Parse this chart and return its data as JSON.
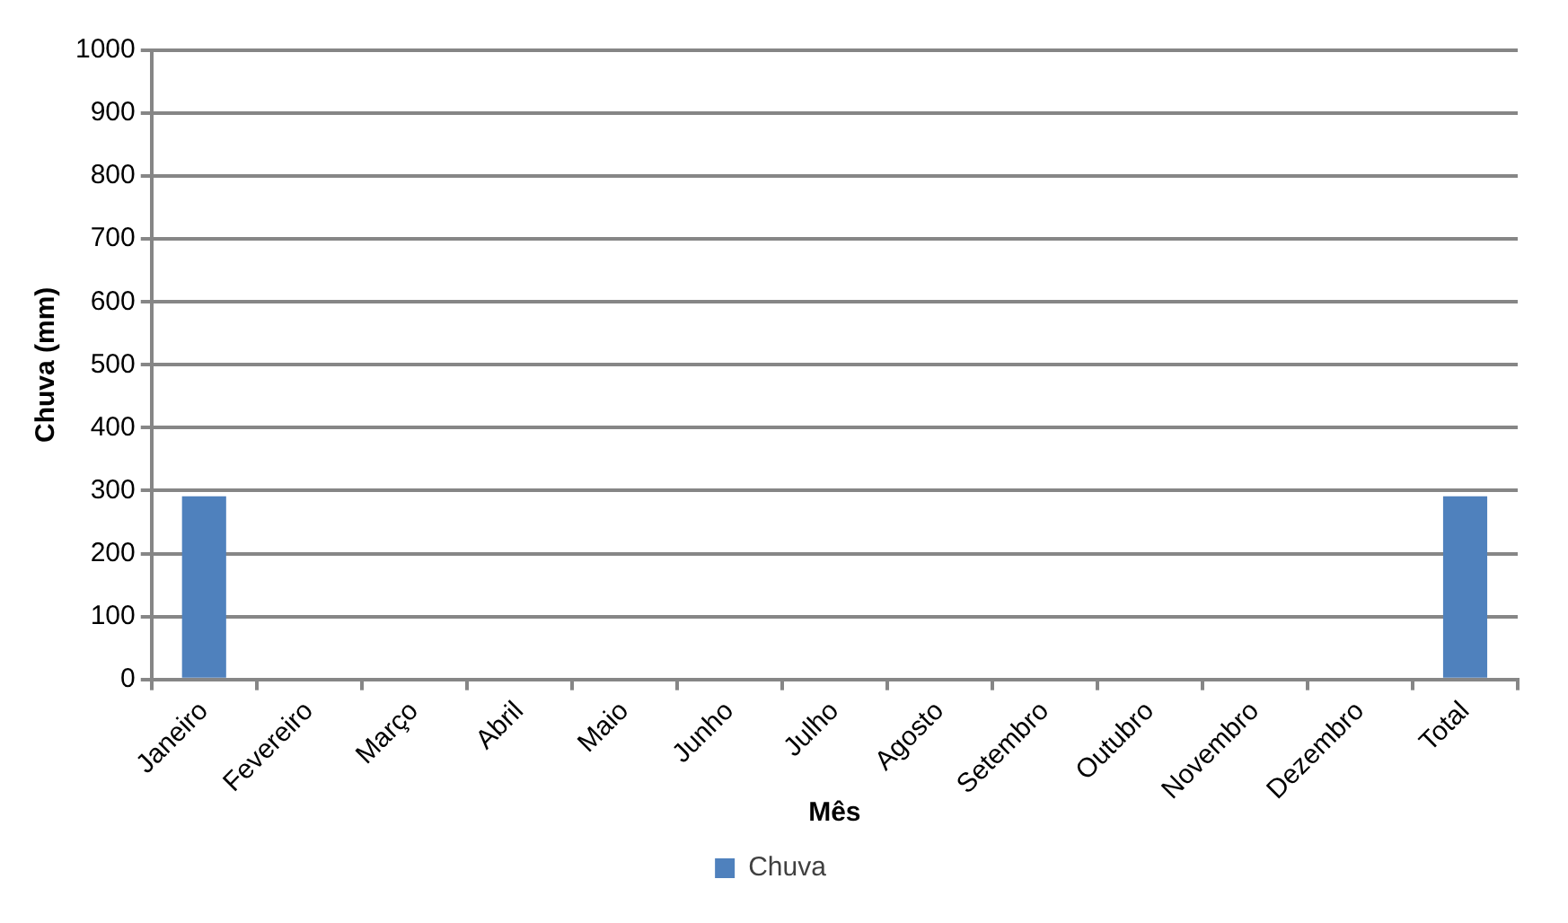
{
  "chart_data": {
    "type": "bar",
    "xlabel": "Mês",
    "ylabel": "Chuva (mm)",
    "categories": [
      "Janeiro",
      "Fevereiro",
      "Março",
      "Abril",
      "Maio",
      "Junho",
      "Julho",
      "Agosto",
      "Setembro",
      "Outubro",
      "Novembro",
      "Dezembro",
      "Total"
    ],
    "series": [
      {
        "name": "Chuva",
        "color": "#4f81bd",
        "values": [
          291,
          0,
          0,
          0,
          0,
          0,
          0,
          0,
          0,
          0,
          0,
          0,
          291
        ]
      }
    ],
    "ylim": [
      0,
      1000
    ],
    "yticks": [
      0,
      100,
      200,
      300,
      400,
      500,
      600,
      700,
      800,
      900,
      1000
    ],
    "grid": "y",
    "legend": "bottom"
  }
}
